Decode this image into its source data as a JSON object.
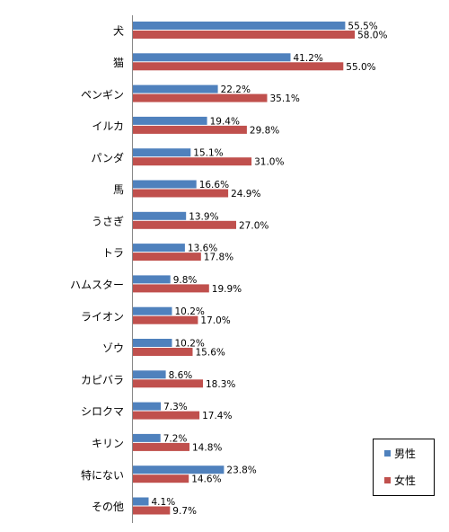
{
  "chart_data": {
    "type": "bar",
    "orientation": "horizontal",
    "categories": [
      "犬",
      "猫",
      "ペンギン",
      "イルカ",
      "パンダ",
      "馬",
      "うさぎ",
      "トラ",
      "ハムスター",
      "ライオン",
      "ゾウ",
      "カピバラ",
      "シロクマ",
      "キリン",
      "特にない",
      "その他"
    ],
    "series": [
      {
        "name": "男性",
        "color": "#4F81BD",
        "values": [
          55.5,
          41.2,
          22.2,
          19.4,
          15.1,
          16.6,
          13.9,
          13.6,
          9.8,
          10.2,
          10.2,
          8.6,
          7.3,
          7.2,
          23.8,
          4.1
        ],
        "labels": [
          "55.5%",
          "41.2%",
          "22.2%",
          "19.4%",
          "15.1%",
          "16.6%",
          "13.9%",
          "13.6%",
          "9.8%",
          "10.2%",
          "10.2%",
          "8.6%",
          "7.3%",
          "7.2%",
          "23.8%",
          "4.1%"
        ]
      },
      {
        "name": "女性",
        "color": "#C0504D",
        "values": [
          58.0,
          55.0,
          35.1,
          29.8,
          31.0,
          24.9,
          27.0,
          17.8,
          19.9,
          17.0,
          15.6,
          18.3,
          17.4,
          14.8,
          14.6,
          9.7
        ],
        "labels": [
          "58.0%",
          "55.0%",
          "35.1%",
          "29.8%",
          "31.0%",
          "24.9%",
          "27.0%",
          "17.8%",
          "19.9%",
          "17.0%",
          "15.6%",
          "18.3%",
          "17.4%",
          "14.8%",
          "14.6%",
          "9.7%"
        ]
      }
    ],
    "legend_position": "bottom-right",
    "grid": false
  }
}
